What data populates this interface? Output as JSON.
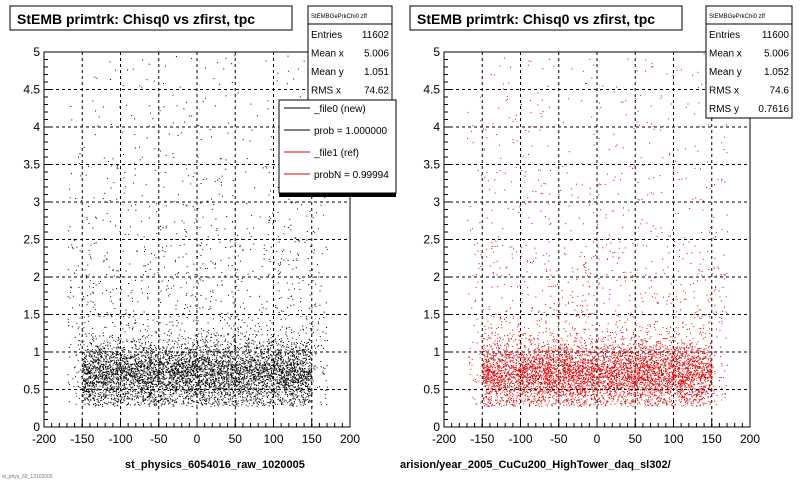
{
  "panels": [
    {
      "title": "StEMB primtrk: Chisq0 vs zfirst, tpc",
      "stats": {
        "header": "StEMBGePrkChi0 zff",
        "rows": [
          {
            "label": "Entries",
            "value": "11602"
          },
          {
            "label": "Mean x",
            "value": "5.006"
          },
          {
            "label": "Mean y",
            "value": "1.051"
          },
          {
            "label": "RMS x",
            "value": "74.62"
          }
        ]
      },
      "legend": {
        "entries": [
          {
            "label": "_file0 (new)",
            "color": "#000000"
          },
          {
            "label": "prob = 1.000000",
            "color": "#000000"
          },
          {
            "label": "_file1 (ref)",
            "color": "#e00000"
          },
          {
            "label": "probN = 0.99994",
            "color": "#e00000"
          }
        ]
      },
      "xlabel": "st_physics_6054016_raw_1020005"
    },
    {
      "title": "StEMB primtrk: Chisq0 vs zfirst, tpc",
      "stats": {
        "header": "StEMBGePrkChi0 zff",
        "rows": [
          {
            "label": "Entries",
            "value": "11600"
          },
          {
            "label": "Mean x",
            "value": "5.006"
          },
          {
            "label": "Mean y",
            "value": "1.052"
          },
          {
            "label": "RMS x",
            "value": "74.6"
          },
          {
            "label": "RMS y",
            "value": "0.7616"
          }
        ]
      },
      "xlabel": "arision/year_2005_CuCu200_HighTower_daq_sl302/"
    }
  ],
  "footer_note": "st_phys_60_13102005",
  "chart_data": [
    {
      "type": "scatter",
      "title": "StEMB primtrk: Chisq0 vs zfirst, tpc",
      "xlabel": "st_physics_6054016_raw_1020005",
      "ylabel": "",
      "xlim": [
        -200,
        200
      ],
      "ylim": [
        0,
        5
      ],
      "xticks": [
        "-200",
        "-150",
        "-100",
        "-50",
        "0",
        "50",
        "100",
        "150",
        "200"
      ],
      "yticks": [
        "0",
        "0.5",
        "1",
        "1.5",
        "2",
        "2.5",
        "3",
        "3.5",
        "4",
        "4.5",
        "5"
      ],
      "grid": true,
      "marker_color": "#000000",
      "series": [
        {
          "entries": 11602,
          "mean_x": 5.006,
          "mean_y": 1.051,
          "rms_x": 74.62,
          "density_core": {
            "x": [
              -150,
              150
            ],
            "y": [
              0.3,
              1.2
            ]
          }
        }
      ]
    },
    {
      "type": "scatter",
      "title": "StEMB primtrk: Chisq0 vs zfirst, tpc",
      "xlabel": "arision/year_2005_CuCu200_HighTower_daq_sl302/",
      "ylabel": "",
      "xlim": [
        -200,
        200
      ],
      "ylim": [
        0,
        5
      ],
      "xticks": [
        "-200",
        "-150",
        "-100",
        "-50",
        "0",
        "50",
        "100",
        "150",
        "200"
      ],
      "yticks": [
        "0",
        "0.5",
        "1",
        "1.5",
        "2",
        "2.5",
        "3",
        "3.5",
        "4",
        "4.5",
        "5"
      ],
      "grid": true,
      "marker_color": "#e00000",
      "series": [
        {
          "entries": 11600,
          "mean_x": 5.006,
          "mean_y": 1.052,
          "rms_x": 74.6,
          "rms_y": 0.7616,
          "density_core": {
            "x": [
              -150,
              150
            ],
            "y": [
              0.3,
              1.2
            ]
          }
        }
      ]
    }
  ]
}
